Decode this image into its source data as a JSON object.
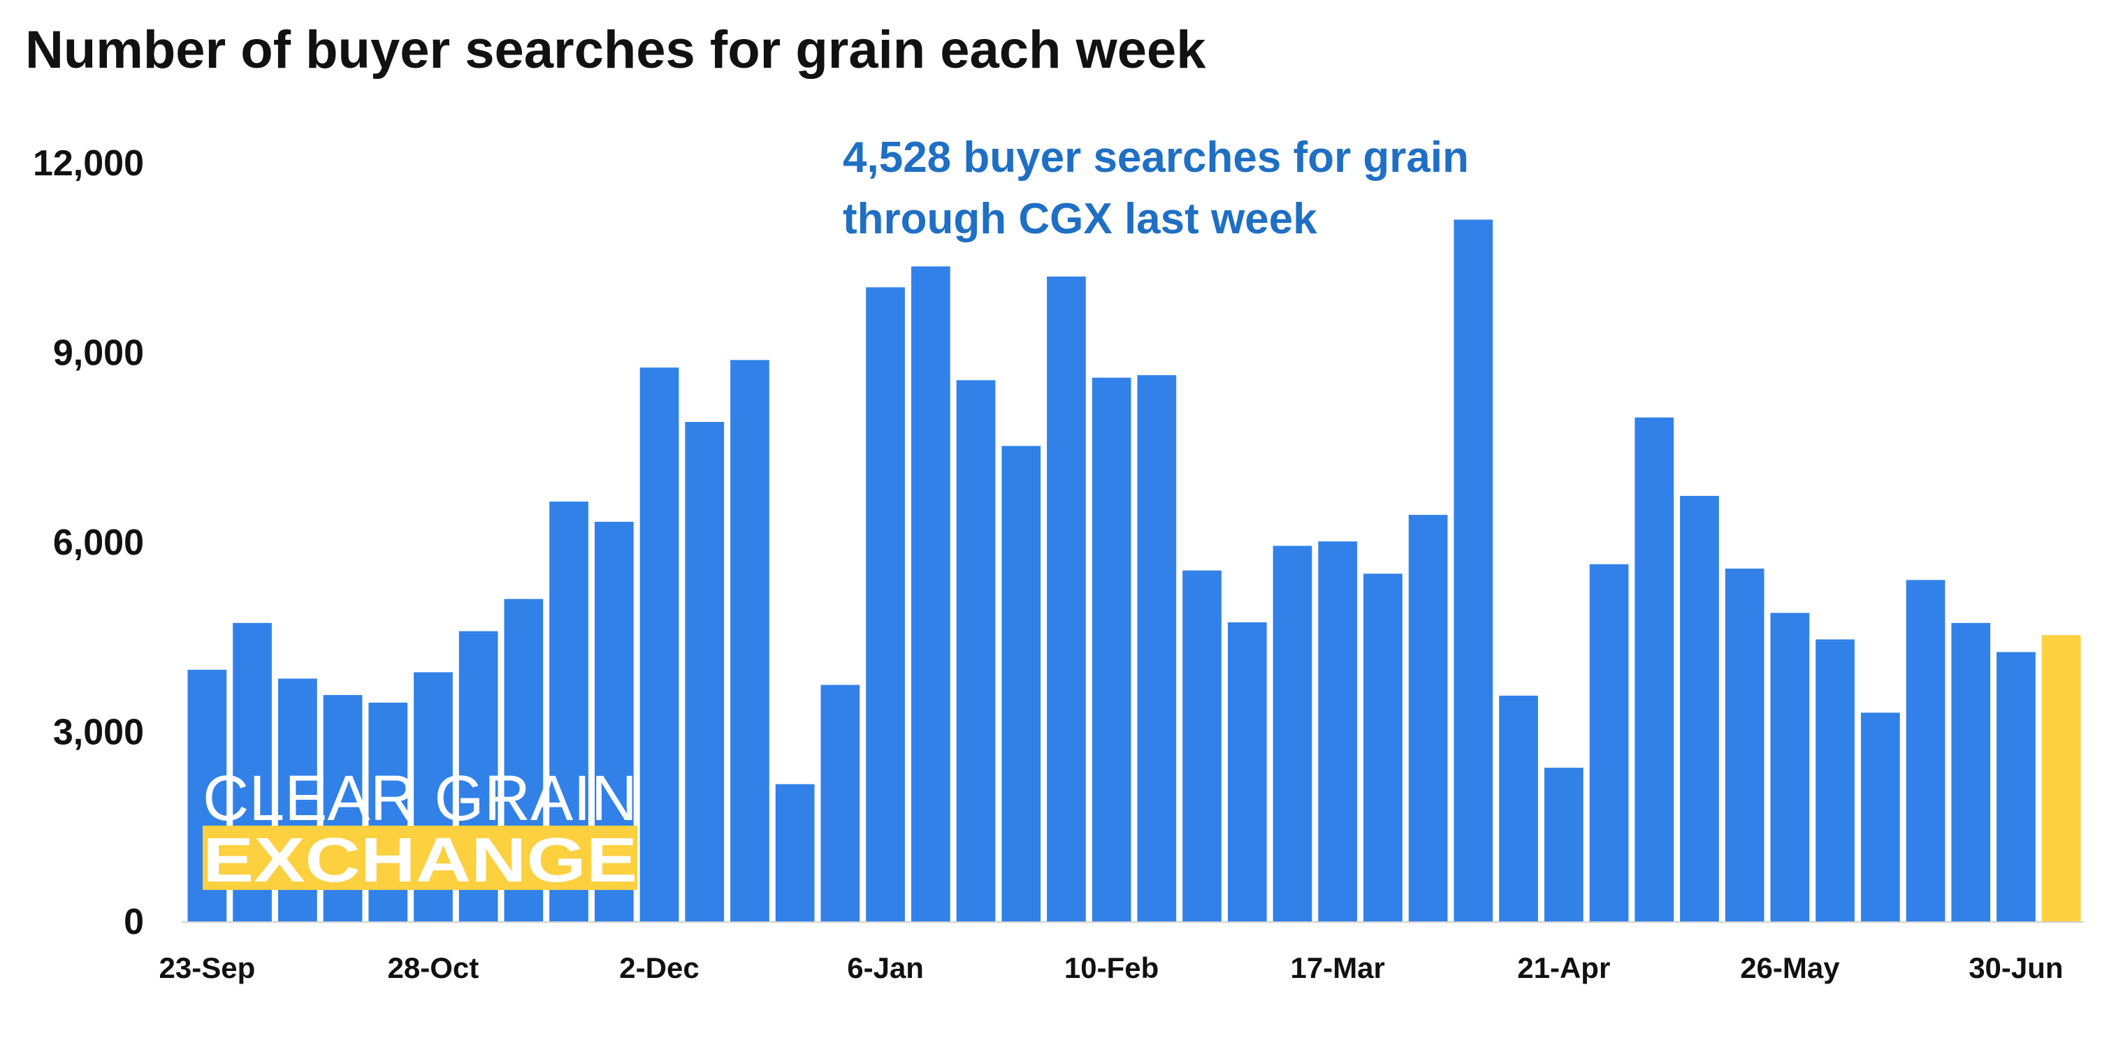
{
  "chart_data": {
    "type": "bar",
    "title": "Number of buyer searches for grain each week",
    "xlabel": "",
    "ylabel": "",
    "ylim": [
      0,
      12000
    ],
    "yticks": [
      "0",
      "3,000",
      "6,000",
      "9,000",
      "12,000"
    ],
    "ytick_values": [
      0,
      3000,
      6000,
      9000,
      12000
    ],
    "x_tick_labels": [
      {
        "index": 0,
        "label": "23-Sep"
      },
      {
        "index": 5,
        "label": "28-Oct"
      },
      {
        "index": 10,
        "label": "2-Dec"
      },
      {
        "index": 15,
        "label": "6-Jan"
      },
      {
        "index": 20,
        "label": "10-Feb"
      },
      {
        "index": 25,
        "label": "17-Mar"
      },
      {
        "index": 30,
        "label": "21-Apr"
      },
      {
        "index": 35,
        "label": "26-May"
      },
      {
        "index": 40,
        "label": "30-Jun"
      }
    ],
    "values": [
      3980,
      4720,
      3840,
      3580,
      3460,
      3940,
      4590,
      5100,
      6640,
      6320,
      8760,
      7900,
      8880,
      2170,
      3740,
      10030,
      10360,
      8560,
      7520,
      10200,
      8600,
      8640,
      5550,
      4730,
      5940,
      6010,
      5500,
      6430,
      11100,
      3570,
      2430,
      5650,
      7970,
      6730,
      5580,
      4880,
      4460,
      3300,
      5400,
      4720,
      4260,
      4528
    ],
    "highlight_index": 41,
    "bar_color": "#3181e8",
    "highlight_color": "#fcd03f",
    "grid": false,
    "annotation": {
      "line1": "4,528 buyer searches for grain",
      "line2": "through CGX last week"
    }
  },
  "logo": {
    "line1": "CLEAR GRAIN",
    "line2": "EXCHANGE",
    "text_color": "#ffffff",
    "stripe_color": "#fcd03f"
  }
}
